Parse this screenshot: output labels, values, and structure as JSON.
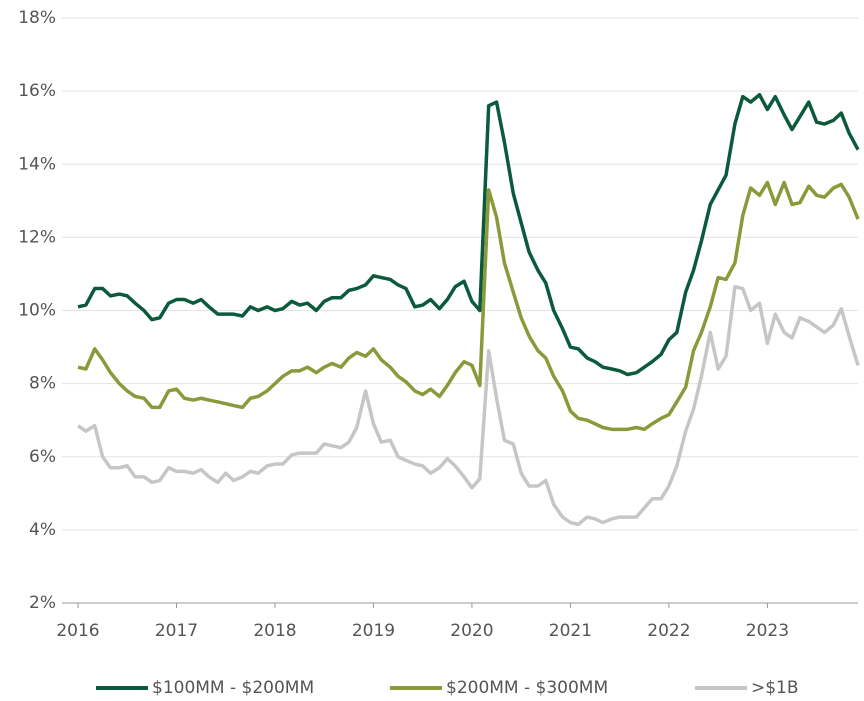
{
  "chart_data": {
    "type": "line",
    "x": [
      2016,
      2016.08,
      2016.17,
      2016.25,
      2016.33,
      2016.42,
      2016.5,
      2016.58,
      2016.67,
      2016.75,
      2016.83,
      2016.92,
      2017,
      2017.08,
      2017.17,
      2017.25,
      2017.33,
      2017.42,
      2017.5,
      2017.58,
      2017.67,
      2017.75,
      2017.83,
      2017.92,
      2018,
      2018.08,
      2018.17,
      2018.25,
      2018.33,
      2018.42,
      2018.5,
      2018.58,
      2018.67,
      2018.75,
      2018.83,
      2018.92,
      2019,
      2019.08,
      2019.17,
      2019.25,
      2019.33,
      2019.42,
      2019.5,
      2019.58,
      2019.67,
      2019.75,
      2019.83,
      2019.92,
      2020,
      2020.08,
      2020.17,
      2020.25,
      2020.33,
      2020.42,
      2020.5,
      2020.58,
      2020.67,
      2020.75,
      2020.83,
      2020.92,
      2021,
      2021.08,
      2021.17,
      2021.25,
      2021.33,
      2021.42,
      2021.5,
      2021.58,
      2021.67,
      2021.75,
      2021.83,
      2021.92,
      2022,
      2022.08,
      2022.17,
      2022.25,
      2022.33,
      2022.42,
      2022.5,
      2022.58,
      2022.67,
      2022.75,
      2022.83,
      2022.92,
      2023,
      2023.08,
      2023.17,
      2023.25,
      2023.33,
      2023.42,
      2023.5,
      2023.58,
      2023.67,
      2023.75,
      2023.83,
      2023.92
    ],
    "series": [
      {
        "name": "$100MM - $200MM",
        "color": "#0b5a3c",
        "values": [
          10.1,
          10.15,
          10.6,
          10.6,
          10.4,
          10.45,
          10.4,
          10.2,
          10.0,
          9.75,
          9.8,
          10.2,
          10.3,
          10.3,
          10.2,
          10.3,
          10.1,
          9.9,
          9.9,
          9.9,
          9.85,
          10.1,
          10.0,
          10.1,
          10.0,
          10.05,
          10.25,
          10.15,
          10.2,
          10.0,
          10.25,
          10.35,
          10.35,
          10.55,
          10.6,
          10.7,
          10.95,
          10.9,
          10.85,
          10.7,
          10.6,
          10.1,
          10.15,
          10.3,
          10.05,
          10.3,
          10.65,
          10.8,
          10.25,
          10.0,
          15.6,
          15.7,
          14.6,
          13.2,
          12.4,
          11.6,
          11.1,
          10.75,
          10.0,
          9.5,
          9.0,
          8.95,
          8.7,
          8.6,
          8.45,
          8.4,
          8.35,
          8.25,
          8.3,
          8.45,
          8.6,
          8.8,
          9.2,
          9.4,
          10.5,
          11.1,
          11.9,
          12.9,
          13.3,
          13.7,
          15.1,
          15.85,
          15.7,
          15.9,
          15.5,
          15.85,
          15.35,
          14.95,
          15.3,
          15.7,
          15.15,
          15.1,
          15.2,
          15.4,
          14.85,
          14.4
        ]
      },
      {
        "name": "$200MM - $300MM",
        "color": "#8a9a3b",
        "values": [
          8.45,
          8.4,
          8.95,
          8.65,
          8.3,
          8.0,
          7.8,
          7.65,
          7.6,
          7.35,
          7.35,
          7.8,
          7.85,
          7.6,
          7.55,
          7.6,
          7.55,
          7.5,
          7.45,
          7.4,
          7.35,
          7.6,
          7.65,
          7.8,
          8.0,
          8.2,
          8.35,
          8.35,
          8.45,
          8.3,
          8.45,
          8.55,
          8.45,
          8.7,
          8.85,
          8.75,
          8.95,
          8.65,
          8.45,
          8.2,
          8.05,
          7.8,
          7.7,
          7.85,
          7.65,
          7.95,
          8.3,
          8.6,
          8.5,
          7.95,
          13.3,
          12.55,
          11.3,
          10.5,
          9.8,
          9.3,
          8.9,
          8.7,
          8.2,
          7.8,
          7.25,
          7.05,
          7.0,
          6.9,
          6.8,
          6.75,
          6.75,
          6.75,
          6.8,
          6.75,
          6.9,
          7.05,
          7.15,
          7.5,
          7.9,
          8.9,
          9.4,
          10.1,
          10.9,
          10.85,
          11.3,
          12.6,
          13.35,
          13.15,
          13.5,
          12.9,
          13.5,
          12.9,
          12.95,
          13.4,
          13.15,
          13.1,
          13.35,
          13.45,
          13.1,
          12.5
        ]
      },
      {
        "name": ">$1B",
        "color": "#c6c6c6",
        "values": [
          6.85,
          6.7,
          6.85,
          6.0,
          5.7,
          5.7,
          5.75,
          5.45,
          5.45,
          5.3,
          5.35,
          5.7,
          5.6,
          5.6,
          5.55,
          5.65,
          5.45,
          5.3,
          5.55,
          5.35,
          5.45,
          5.6,
          5.55,
          5.75,
          5.8,
          5.8,
          6.05,
          6.1,
          6.1,
          6.1,
          6.35,
          6.3,
          6.25,
          6.4,
          6.8,
          7.8,
          6.9,
          6.4,
          6.45,
          6.0,
          5.9,
          5.8,
          5.75,
          5.55,
          5.7,
          5.95,
          5.75,
          5.45,
          5.15,
          5.4,
          8.9,
          7.6,
          6.45,
          6.35,
          5.55,
          5.2,
          5.2,
          5.35,
          4.7,
          4.35,
          4.2,
          4.15,
          4.35,
          4.3,
          4.2,
          4.3,
          4.35,
          4.35,
          4.35,
          4.6,
          4.85,
          4.85,
          5.2,
          5.75,
          6.7,
          7.3,
          8.2,
          9.4,
          8.4,
          8.75,
          10.65,
          10.6,
          10.0,
          10.2,
          9.1,
          9.9,
          9.4,
          9.25,
          9.8,
          9.7,
          9.55,
          9.4,
          9.6,
          10.05,
          9.3,
          8.5
        ]
      }
    ],
    "xlim": [
      2016,
      2023.92
    ],
    "xticks": [
      2016,
      2017,
      2018,
      2019,
      2020,
      2021,
      2022,
      2023
    ],
    "ylim": [
      2,
      18
    ],
    "yticks": [
      {
        "value": 2,
        "label": "2%"
      },
      {
        "value": 4,
        "label": "4%"
      },
      {
        "value": 6,
        "label": "6%"
      },
      {
        "value": 8,
        "label": "8%"
      },
      {
        "value": 10,
        "label": "10%"
      },
      {
        "value": 12,
        "label": "12%"
      },
      {
        "value": 14,
        "label": "14%"
      },
      {
        "value": 16,
        "label": "16%"
      },
      {
        "value": 18,
        "label": "18%"
      }
    ],
    "grid": true,
    "legend": "bottom"
  }
}
